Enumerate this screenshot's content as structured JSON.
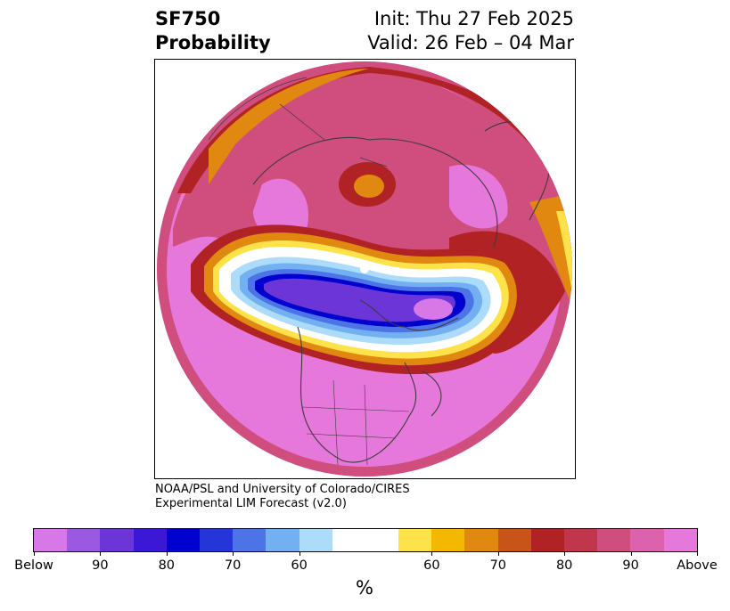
{
  "header": {
    "variable": "SF750",
    "product": "Probability",
    "init": "Init: Thu 27 Feb 2025",
    "valid": "Valid: 26 Feb – 04 Mar"
  },
  "credit": {
    "line1": "NOAA/PSL and University of Colorado/CIRES",
    "line2": "Experimental LIM Forecast (v2.0)"
  },
  "colorbar": {
    "unit": "%",
    "segments": [
      {
        "color": "#d877e8"
      },
      {
        "color": "#9b58e0"
      },
      {
        "color": "#6b35d8"
      },
      {
        "color": "#3b18d6"
      },
      {
        "color": "#0000cf"
      },
      {
        "color": "#2436d8"
      },
      {
        "color": "#4d74e6"
      },
      {
        "color": "#72b0f2"
      },
      {
        "color": "#acdcfa"
      },
      {
        "color": "#ffffff"
      },
      {
        "color": "#ffffff"
      },
      {
        "color": "#fde24a"
      },
      {
        "color": "#f4b800"
      },
      {
        "color": "#e0880f"
      },
      {
        "color": "#c8541a"
      },
      {
        "color": "#b02224"
      },
      {
        "color": "#c2364d"
      },
      {
        "color": "#d04e7e"
      },
      {
        "color": "#dc62ae"
      },
      {
        "color": "#e778db"
      }
    ],
    "tick_labels": [
      "Below",
      "90",
      "80",
      "70",
      "60",
      "60",
      "70",
      "80",
      "90",
      "Above"
    ]
  },
  "map": {
    "projection": "north-polar-stereographic",
    "palette": {
      "above_high": "#e778db",
      "above_mid": "#d04e7e",
      "red": "#b02224",
      "orange": "#e0880f",
      "yellow": "#fde24a",
      "below_low": "#acdcfa",
      "below_mid": "#4d74e6",
      "below_deep": "#0000cf",
      "below_violet": "#6b35d8",
      "coast": "#3c3c3c"
    }
  }
}
